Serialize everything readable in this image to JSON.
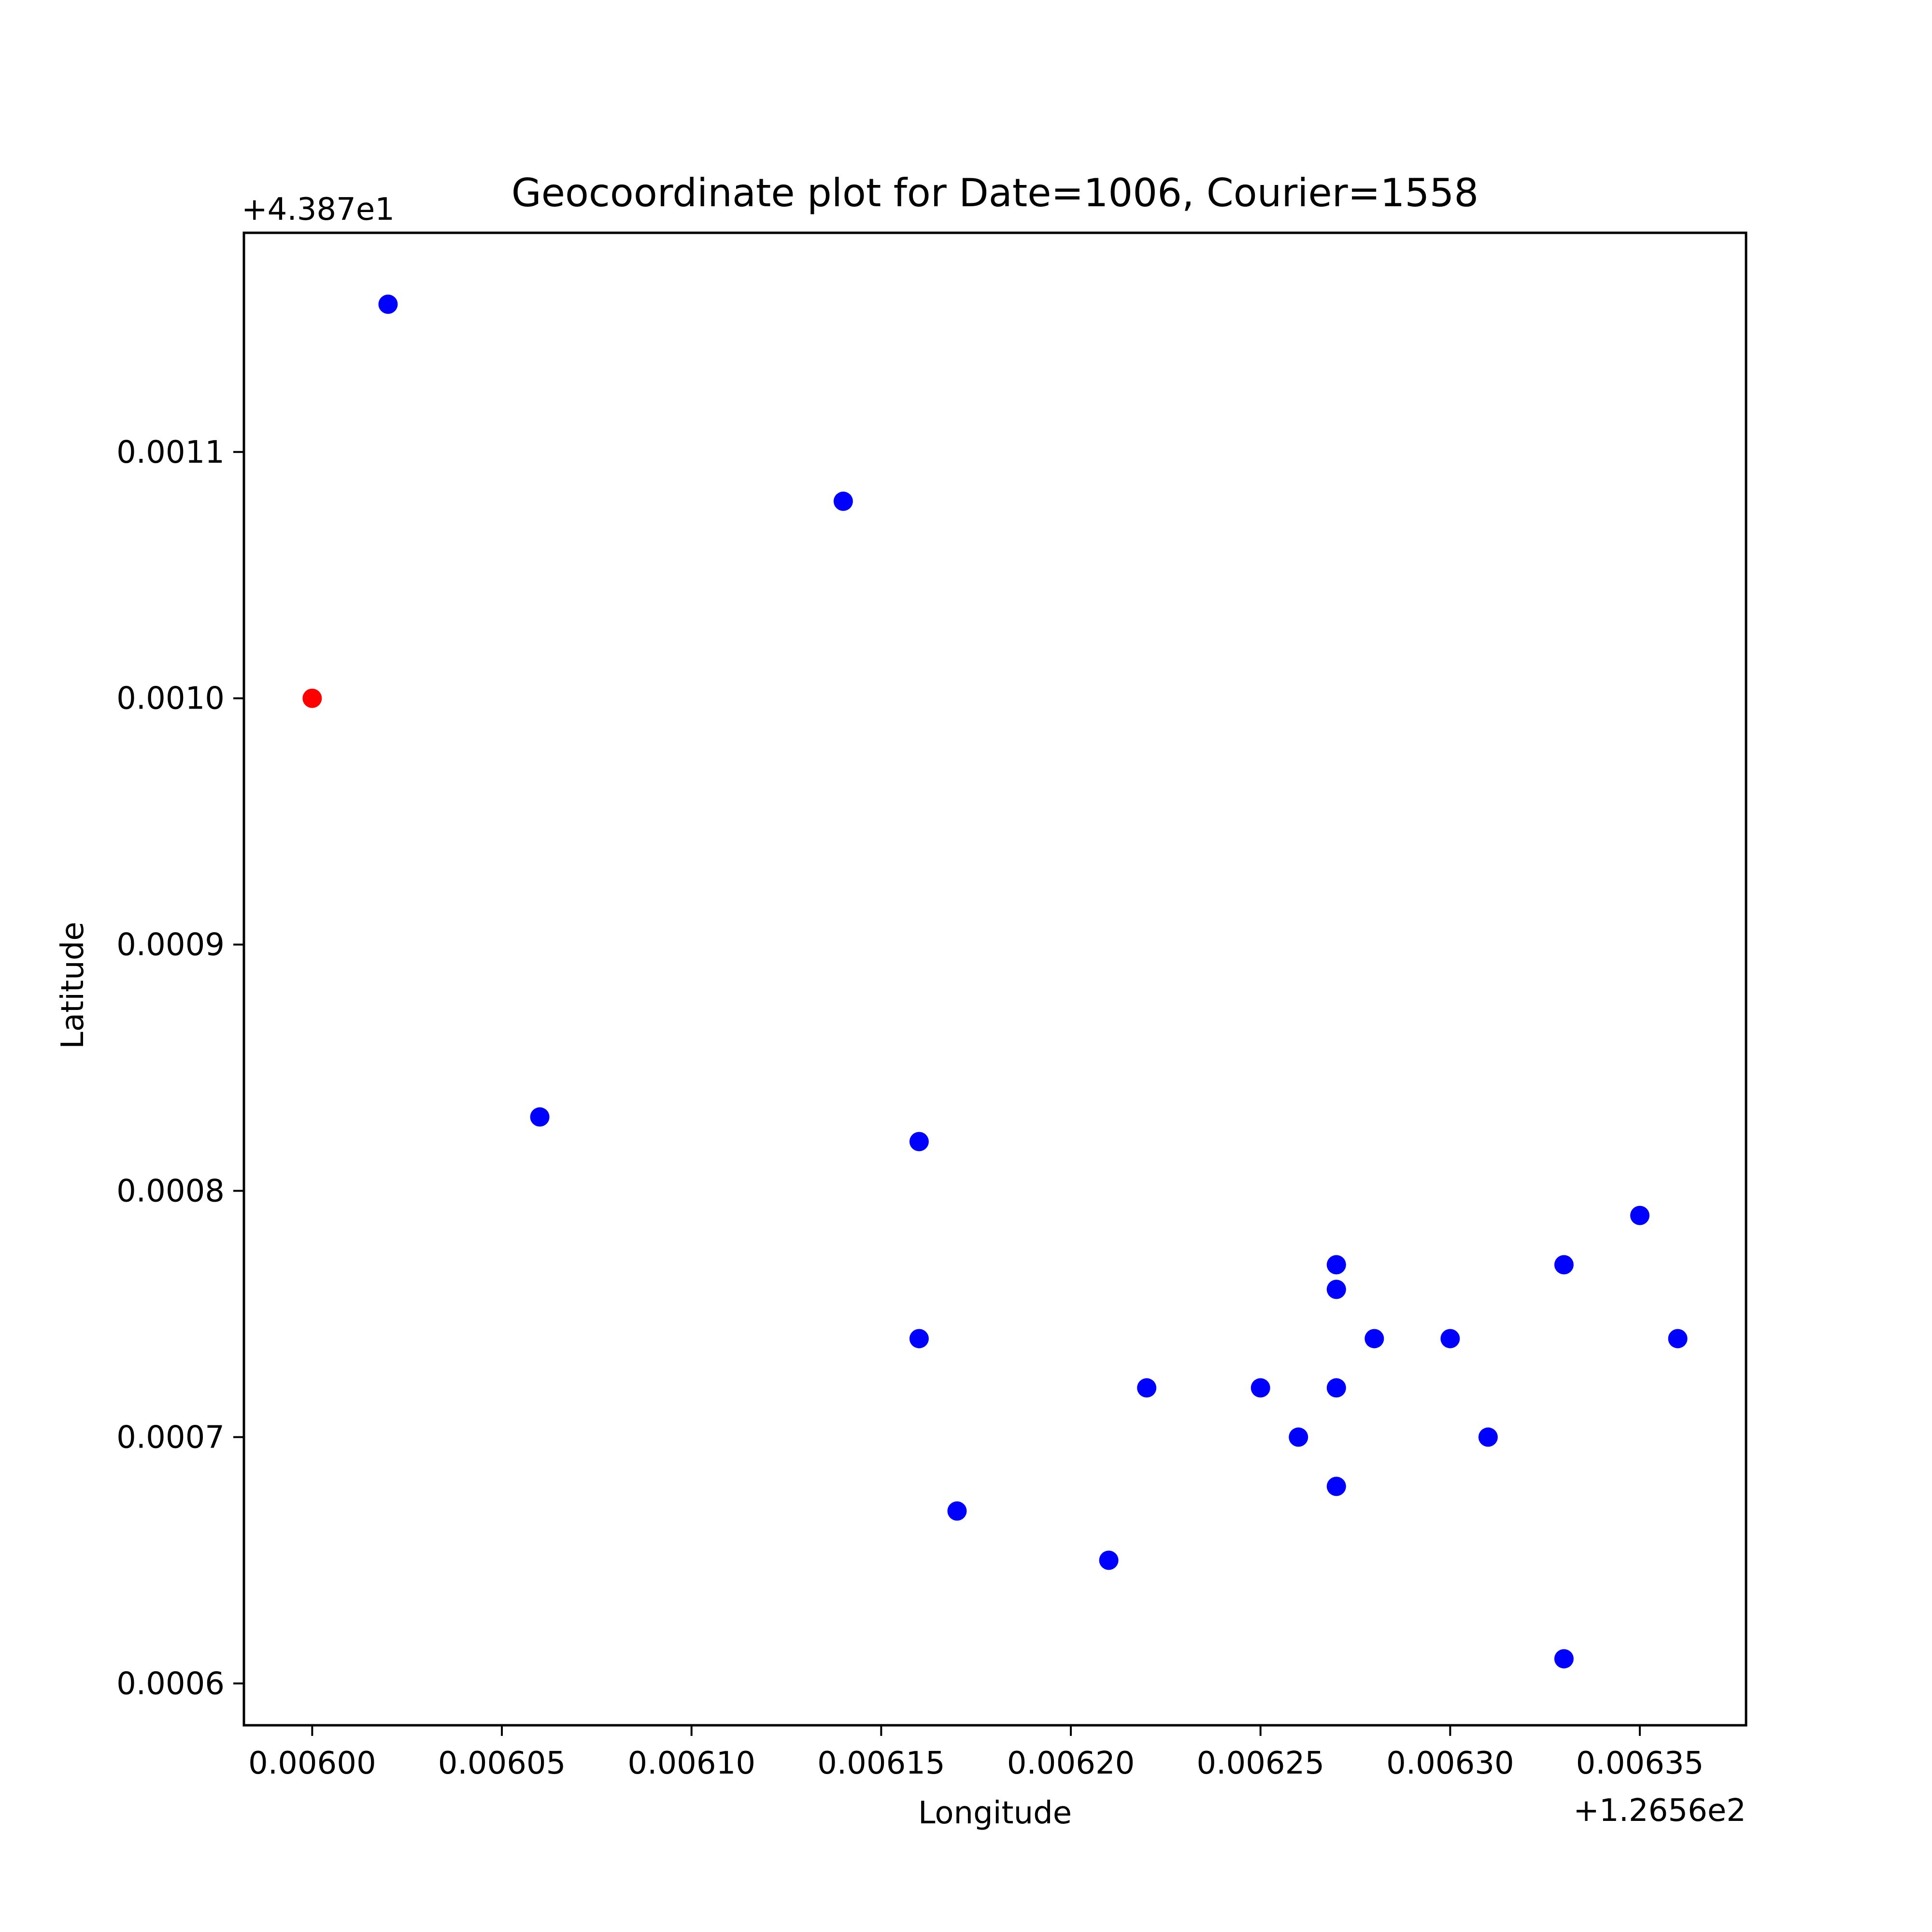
{
  "chart_data": {
    "type": "scatter",
    "title": "Geocoordinate plot for Date=1006, Courier=1558",
    "xlabel": "Longitude",
    "ylabel": "Latitude",
    "x_offset_label": "+1.2656e2",
    "y_offset_label": "+4.387e1",
    "xlim": [
      0.005982,
      0.006378
    ],
    "ylim": [
      0.000583,
      0.001189
    ],
    "xticks": [
      0.006,
      0.00605,
      0.0061,
      0.00615,
      0.0062,
      0.00625,
      0.0063,
      0.00635
    ],
    "xtick_labels": [
      "0.00600",
      "0.00605",
      "0.00610",
      "0.00615",
      "0.00620",
      "0.00625",
      "0.00630",
      "0.00635"
    ],
    "yticks": [
      0.0006,
      0.0007,
      0.0008,
      0.0009,
      0.001,
      0.0011
    ],
    "ytick_labels": [
      "0.0006",
      "0.0007",
      "0.0008",
      "0.0009",
      "0.0010",
      "0.0011"
    ],
    "grid": false,
    "series": [
      {
        "color": "#0000ff",
        "points": [
          [
            0.00602,
            0.00116
          ],
          [
            0.00614,
            0.00108
          ],
          [
            0.00606,
            0.00083
          ],
          [
            0.00616,
            0.00082
          ],
          [
            0.00616,
            0.00074
          ],
          [
            0.00617,
            0.00067
          ],
          [
            0.00621,
            0.00065
          ],
          [
            0.00622,
            0.00072
          ],
          [
            0.00625,
            0.00072
          ],
          [
            0.00626,
            0.0007
          ],
          [
            0.00627,
            0.00077
          ],
          [
            0.00627,
            0.00076
          ],
          [
            0.00627,
            0.00072
          ],
          [
            0.00627,
            0.00068
          ],
          [
            0.00628,
            0.00074
          ],
          [
            0.0063,
            0.00074
          ],
          [
            0.00631,
            0.0007
          ],
          [
            0.00633,
            0.00077
          ],
          [
            0.00633,
            0.00061
          ],
          [
            0.00635,
            0.00079
          ],
          [
            0.00636,
            0.00074
          ]
        ]
      },
      {
        "color": "#ff0000",
        "points": [
          [
            0.006,
            0.001
          ]
        ]
      }
    ]
  }
}
